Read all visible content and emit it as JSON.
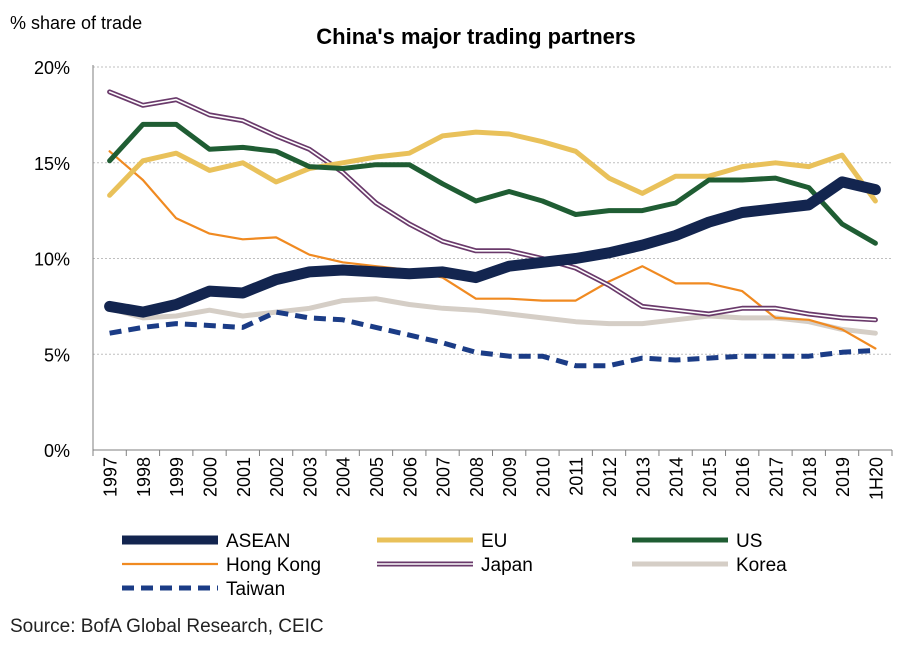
{
  "chart_data": {
    "type": "line",
    "title": "China's major trading partners",
    "ylabel": "% share of trade",
    "ylim": [
      0,
      20
    ],
    "yticks": [
      "0%",
      "5%",
      "10%",
      "15%",
      "20%"
    ],
    "categories": [
      "1997",
      "1998",
      "1999",
      "2000",
      "2001",
      "2002",
      "2003",
      "2004",
      "2005",
      "2006",
      "2007",
      "2008",
      "2009",
      "2010",
      "2011",
      "2012",
      "2013",
      "2014",
      "2015",
      "2016",
      "2017",
      "2018",
      "2019",
      "1H20"
    ],
    "grid": "horizontal",
    "legend_position": "bottom",
    "series": [
      {
        "name": "ASEAN",
        "color": "#13254f",
        "style": "solid-thick",
        "values": [
          7.5,
          7.2,
          7.6,
          8.3,
          8.2,
          8.9,
          9.3,
          9.4,
          9.3,
          9.2,
          9.3,
          9.0,
          9.6,
          9.8,
          10.0,
          10.3,
          10.7,
          11.2,
          11.9,
          12.4,
          12.6,
          12.8,
          14.0,
          13.6
        ]
      },
      {
        "name": "EU",
        "color": "#e9c15a",
        "style": "solid",
        "values": [
          13.3,
          15.1,
          15.5,
          14.6,
          15.0,
          14.0,
          14.7,
          15.0,
          15.3,
          15.5,
          16.4,
          16.6,
          16.5,
          16.1,
          15.6,
          14.2,
          13.4,
          14.3,
          14.3,
          14.8,
          15.0,
          14.8,
          15.4,
          13.0
        ]
      },
      {
        "name": "US",
        "color": "#1f5d33",
        "style": "solid",
        "values": [
          15.1,
          17.0,
          17.0,
          15.7,
          15.8,
          15.6,
          14.8,
          14.7,
          14.9,
          14.9,
          13.9,
          13.0,
          13.5,
          13.0,
          12.3,
          12.5,
          12.5,
          12.9,
          14.1,
          14.1,
          14.2,
          13.7,
          11.8,
          10.8
        ]
      },
      {
        "name": "Hong Kong",
        "color": "#f08a21",
        "style": "solid-thin",
        "values": [
          15.6,
          14.1,
          12.1,
          11.3,
          11.0,
          11.1,
          10.2,
          9.8,
          9.6,
          9.4,
          9.0,
          7.9,
          7.9,
          7.8,
          7.8,
          8.8,
          9.6,
          8.7,
          8.7,
          8.3,
          6.9,
          6.8,
          6.3,
          5.3
        ]
      },
      {
        "name": "Japan",
        "color": "#6a3a6b",
        "style": "double",
        "values": [
          18.7,
          18.0,
          18.3,
          17.5,
          17.2,
          16.4,
          15.7,
          14.5,
          12.9,
          11.8,
          10.9,
          10.4,
          10.4,
          10.0,
          9.5,
          8.6,
          7.5,
          7.3,
          7.1,
          7.4,
          7.4,
          7.1,
          6.9,
          6.8
        ]
      },
      {
        "name": "Korea",
        "color": "#d5cec6",
        "style": "solid",
        "values": [
          7.4,
          6.9,
          7.0,
          7.3,
          7.0,
          7.2,
          7.4,
          7.8,
          7.9,
          7.6,
          7.4,
          7.3,
          7.1,
          6.9,
          6.7,
          6.6,
          6.6,
          6.8,
          7.0,
          6.9,
          6.9,
          6.7,
          6.3,
          6.1
        ]
      },
      {
        "name": "Taiwan",
        "color": "#1b3c86",
        "style": "dashed",
        "values": [
          6.1,
          6.4,
          6.6,
          6.5,
          6.4,
          7.2,
          6.9,
          6.8,
          6.4,
          6.0,
          5.6,
          5.1,
          4.9,
          4.9,
          4.4,
          4.4,
          4.8,
          4.7,
          4.8,
          4.9,
          4.9,
          4.9,
          5.1,
          5.2
        ]
      }
    ],
    "source": "Source: BofA Global Research, CEIC"
  }
}
